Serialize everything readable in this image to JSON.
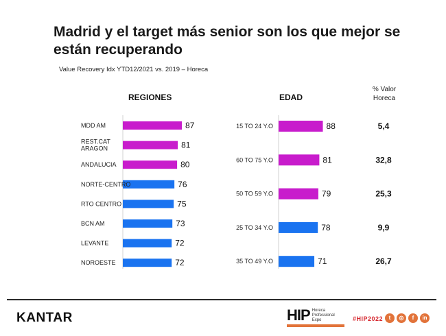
{
  "header": {
    "title": "Madrid y el target más senior son los que mejor se están recuperando",
    "subtitle": "Value Recovery Idx YTD12/2021 vs. 2019 – Horeca"
  },
  "footer": {
    "brand": "KANTAR",
    "hip_mark": "HIP",
    "hip_sub": [
      "Horeca",
      "Professional",
      "Expo"
    ],
    "hashtag": "#HIP2022",
    "social_icons": [
      "twitter-icon",
      "instagram-icon",
      "facebook-icon",
      "linkedin-icon"
    ]
  },
  "colors": {
    "highlight": "#c81ccc",
    "base": "#1a73f0",
    "footer_accent": "#e2733a",
    "hashtag": "#d6282f"
  },
  "chart_data": [
    {
      "type": "bar",
      "orientation": "horizontal",
      "title": "REGIONES",
      "categories": [
        "MDD AM",
        "REST.CAT ARAGON",
        "ANDALUCIA",
        "NORTE-CENTRO",
        "RTO CENTRO",
        "BCN AM",
        "LEVANTE",
        "NOROESTE"
      ],
      "category_lines": [
        [
          "MDD AM"
        ],
        [
          "REST.CAT",
          "ARAGON"
        ],
        [
          "ANDALUCIA"
        ],
        [
          "NORTE-CENTRO"
        ],
        [
          "RTO CENTRO"
        ],
        [
          "BCN AM"
        ],
        [
          "LEVANTE"
        ],
        [
          "NOROESTE"
        ]
      ],
      "values": [
        87,
        81,
        80,
        76,
        75,
        73,
        72,
        72
      ],
      "value_labels": [
        "87",
        "81",
        "80",
        "76",
        "75",
        "73",
        "72",
        "72"
      ],
      "bar_colors": [
        "#c81ccc",
        "#c81ccc",
        "#c81ccc",
        "#1a73f0",
        "#1a73f0",
        "#1a73f0",
        "#1a73f0",
        "#1a73f0"
      ],
      "xlim": [
        0,
        90
      ],
      "grid": false
    },
    {
      "type": "bar",
      "orientation": "horizontal",
      "title": "EDAD",
      "categories": [
        "15 TO 24 Y.O",
        "60 TO 75 Y.O",
        "50 TO 59 Y.O",
        "25 TO 34 Y.O",
        "35 TO 49 Y.O"
      ],
      "values": [
        88,
        81,
        79,
        78,
        71
      ],
      "value_labels": [
        "88",
        "81",
        "79",
        "78",
        "71"
      ],
      "bar_colors": [
        "#c81ccc",
        "#c81ccc",
        "#c81ccc",
        "#1a73f0",
        "#1a73f0"
      ],
      "extra_column": {
        "title": [
          "% Valor",
          "Horeca"
        ],
        "values": [
          "5,4",
          "32,8",
          "25,3",
          "9,9",
          "26,7"
        ]
      },
      "xlim": [
        0,
        90
      ],
      "grid": false
    }
  ]
}
